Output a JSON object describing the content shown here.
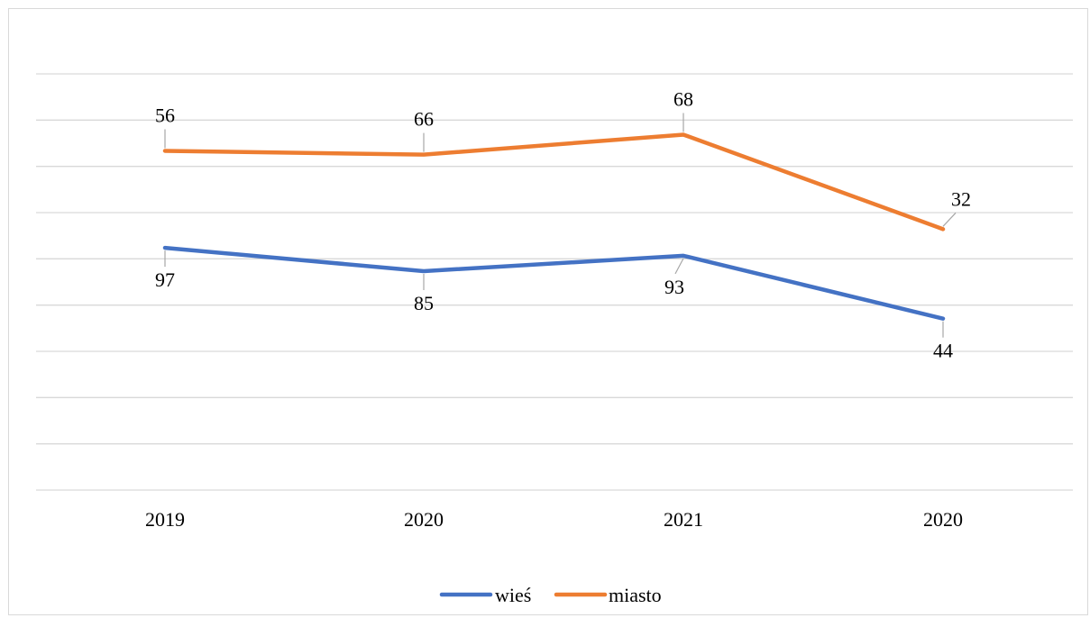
{
  "chart_data": {
    "type": "line",
    "categories": [
      "2019",
      "2020",
      "2021",
      "2020"
    ],
    "series": [
      {
        "name": "wieś",
        "color": "#4472c4",
        "values": [
          97,
          85,
          93,
          44
        ],
        "label_position": "below"
      },
      {
        "name": "miasto",
        "color": "#ed7d31",
        "values": [
          56,
          66,
          68,
          32
        ],
        "label_position": "above"
      }
    ],
    "plotted_values_note_free": true,
    "grid": true,
    "legend": "bottom-center",
    "title": "",
    "xlabel": "",
    "ylabel": ""
  },
  "plot_positions": {
    "wieś": [
      0.582,
      0.526,
      0.563,
      0.412
    ],
    "miasto": [
      0.815,
      0.806,
      0.854,
      0.627
    ]
  }
}
